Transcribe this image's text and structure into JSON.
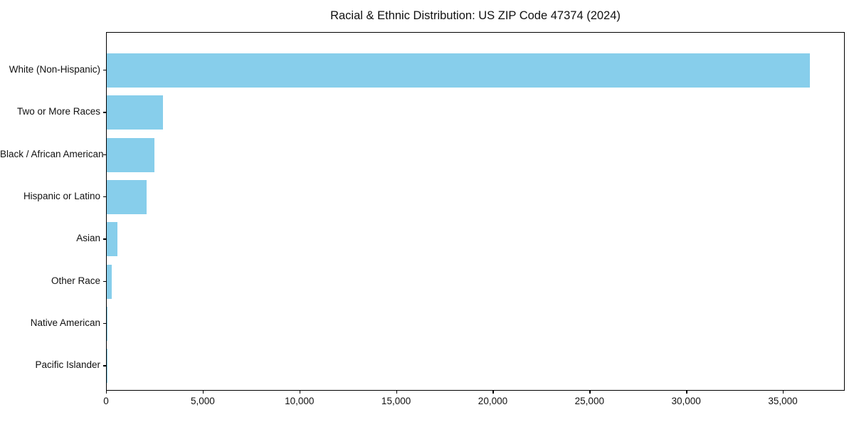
{
  "chart_data": {
    "type": "bar",
    "orientation": "horizontal",
    "title": "Racial & Ethnic Distribution: US ZIP Code 47374 (2024)",
    "categories": [
      "White (Non-Hispanic)",
      "Two or More Races",
      "Black / African American",
      "Hispanic or Latino",
      "Asian",
      "Other Race",
      "Native American",
      "Pacific Islander"
    ],
    "values": [
      36360,
      2900,
      2470,
      2050,
      550,
      260,
      25,
      10
    ],
    "bar_color": "#87CEEB",
    "xlabel": "",
    "ylabel": "",
    "xlim": [
      0,
      38200
    ],
    "xticks": [
      0,
      5000,
      10000,
      15000,
      20000,
      25000,
      30000,
      35000
    ],
    "xtick_labels": [
      "0",
      "5,000",
      "10,000",
      "15,000",
      "20,000",
      "25,000",
      "30,000",
      "35,000"
    ],
    "grid": false,
    "legend_position": "none",
    "spine_color": "#000000",
    "text_color": "#111111"
  }
}
